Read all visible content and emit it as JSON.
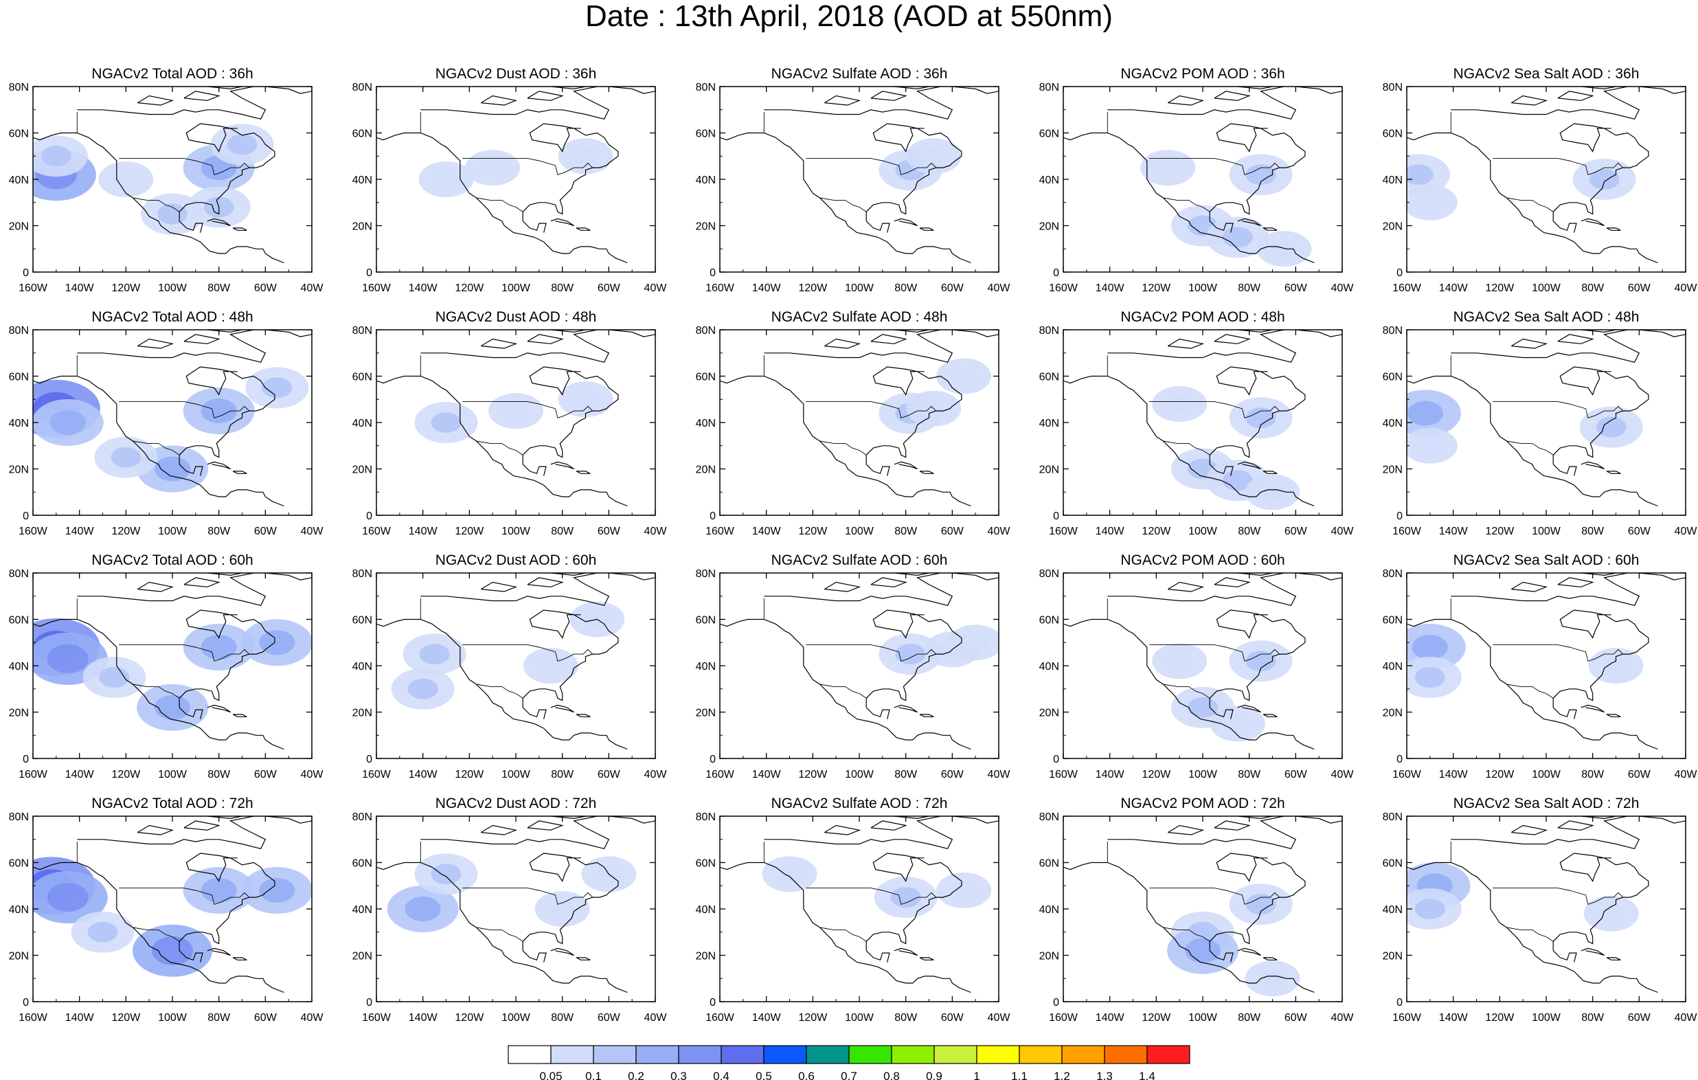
{
  "title": "Date : 13th April, 2018 (AOD at 550nm)",
  "chart_data": {
    "type": "heatmap",
    "layout": {
      "rows": 4,
      "cols": 5
    },
    "forecast_hours": [
      "36h",
      "48h",
      "60h",
      "72h"
    ],
    "species": [
      {
        "key": "total",
        "label_prefix": "NGACv2 Total AOD : "
      },
      {
        "key": "dust",
        "label_prefix": "NGACv2 Dust AOD : "
      },
      {
        "key": "sulfate",
        "label_prefix": "NGACv2 Sulfate AOD : "
      },
      {
        "key": "pom",
        "label_prefix": "NGACv2 POM AOD : "
      },
      {
        "key": "seasalt",
        "label_prefix": "NGACv2 Sea Salt AOD : "
      }
    ],
    "panel_titles": [
      [
        "NGACv2 Total AOD : 36h",
        "NGACv2 Dust AOD : 36h",
        "NGACv2 Sulfate AOD : 36h",
        "NGACv2 POM AOD : 36h",
        "NGACv2 Sea Salt AOD : 36h"
      ],
      [
        "NGACv2 Total AOD : 48h",
        "NGACv2 Dust AOD : 48h",
        "NGACv2 Sulfate AOD : 48h",
        "NGACv2 POM AOD : 48h",
        "NGACv2 Sea Salt AOD : 48h"
      ],
      [
        "NGACv2 Total AOD : 60h",
        "NGACv2 Dust AOD : 60h",
        "NGACv2 Sulfate AOD : 60h",
        "NGACv2 POM AOD : 60h",
        "NGACv2 Sea Salt AOD : 60h"
      ],
      [
        "NGACv2 Total AOD : 72h",
        "NGACv2 Dust AOD : 72h",
        "NGACv2 Sulfate AOD : 72h",
        "NGACv2 POM AOD : 72h",
        "NGACv2 Sea Salt  AOD : 72h"
      ]
    ],
    "x_axis": {
      "ticks": [
        -160,
        -140,
        -120,
        -100,
        -80,
        -60,
        -40
      ],
      "tick_labels": [
        "160W",
        "140W",
        "120W",
        "100W",
        "80W",
        "60W",
        "40W"
      ],
      "range": [
        -160,
        -40
      ]
    },
    "y_axis": {
      "ticks": [
        0,
        20,
        40,
        60,
        80
      ],
      "tick_labels": [
        "0",
        "20N",
        "40N",
        "60N",
        "80N"
      ],
      "range": [
        0,
        80
      ]
    },
    "colorbar": {
      "levels": [
        "0.05",
        "0.1",
        "0.2",
        "0.3",
        "0.4",
        "0.5",
        "0.6",
        "0.7",
        "0.8",
        "0.9",
        "1",
        "1.1",
        "1.2",
        "1.3",
        "1.4"
      ],
      "colors": [
        "#ffffff",
        "#d2ddfa",
        "#b4c6f8",
        "#96aff6",
        "#7d92f2",
        "#5f6eef",
        "#0a5aff",
        "#00968c",
        "#37e600",
        "#8cf000",
        "#c8f03c",
        "#ffff00",
        "#ffc800",
        "#ffa000",
        "#ff6e00",
        "#ff1e1e"
      ]
    },
    "features": {
      "total": [
        [
          {
            "lon": -150,
            "lat": 42,
            "level": 4
          },
          {
            "lon": -150,
            "lat": 50,
            "level": 2
          },
          {
            "lon": -80,
            "lat": 45,
            "level": 3
          },
          {
            "lon": -70,
            "lat": 55,
            "level": 2
          },
          {
            "lon": -120,
            "lat": 40,
            "level": 1
          },
          {
            "lon": -100,
            "lat": 25,
            "level": 2
          },
          {
            "lon": -80,
            "lat": 28,
            "level": 2
          }
        ],
        [
          {
            "lon": -150,
            "lat": 46,
            "level": 5
          },
          {
            "lon": -145,
            "lat": 40,
            "level": 3
          },
          {
            "lon": -80,
            "lat": 45,
            "level": 3
          },
          {
            "lon": -55,
            "lat": 55,
            "level": 2
          },
          {
            "lon": -100,
            "lat": 20,
            "level": 3
          },
          {
            "lon": -120,
            "lat": 25,
            "level": 2
          }
        ],
        [
          {
            "lon": -150,
            "lat": 48,
            "level": 5
          },
          {
            "lon": -145,
            "lat": 43,
            "level": 4
          },
          {
            "lon": -80,
            "lat": 48,
            "level": 3
          },
          {
            "lon": -55,
            "lat": 50,
            "level": 3
          },
          {
            "lon": -100,
            "lat": 22,
            "level": 3
          },
          {
            "lon": -125,
            "lat": 35,
            "level": 2
          }
        ],
        [
          {
            "lon": -152,
            "lat": 50,
            "level": 5
          },
          {
            "lon": -145,
            "lat": 45,
            "level": 4
          },
          {
            "lon": -100,
            "lat": 22,
            "level": 4
          },
          {
            "lon": -80,
            "lat": 48,
            "level": 3
          },
          {
            "lon": -55,
            "lat": 48,
            "level": 3
          },
          {
            "lon": -130,
            "lat": 30,
            "level": 2
          }
        ]
      ],
      "dust": [
        [
          {
            "lon": -130,
            "lat": 40,
            "level": 1
          },
          {
            "lon": -110,
            "lat": 45,
            "level": 1
          },
          {
            "lon": -70,
            "lat": 50,
            "level": 1
          }
        ],
        [
          {
            "lon": -130,
            "lat": 40,
            "level": 2
          },
          {
            "lon": -100,
            "lat": 45,
            "level": 1
          },
          {
            "lon": -70,
            "lat": 50,
            "level": 1
          }
        ],
        [
          {
            "lon": -135,
            "lat": 45,
            "level": 2
          },
          {
            "lon": -140,
            "lat": 30,
            "level": 2
          },
          {
            "lon": -85,
            "lat": 40,
            "level": 1
          },
          {
            "lon": -65,
            "lat": 60,
            "level": 1
          }
        ],
        [
          {
            "lon": -140,
            "lat": 40,
            "level": 3
          },
          {
            "lon": -130,
            "lat": 55,
            "level": 2
          },
          {
            "lon": -80,
            "lat": 40,
            "level": 1
          },
          {
            "lon": -60,
            "lat": 55,
            "level": 1
          }
        ]
      ],
      "sulfate": [
        [
          {
            "lon": -78,
            "lat": 44,
            "level": 2
          },
          {
            "lon": -68,
            "lat": 50,
            "level": 1
          }
        ],
        [
          {
            "lon": -78,
            "lat": 44,
            "level": 2
          },
          {
            "lon": -68,
            "lat": 46,
            "level": 1
          },
          {
            "lon": -55,
            "lat": 60,
            "level": 1
          }
        ],
        [
          {
            "lon": -78,
            "lat": 45,
            "level": 2
          },
          {
            "lon": -60,
            "lat": 47,
            "level": 1
          },
          {
            "lon": -50,
            "lat": 50,
            "level": 1
          }
        ],
        [
          {
            "lon": -80,
            "lat": 45,
            "level": 2
          },
          {
            "lon": -55,
            "lat": 48,
            "level": 1
          },
          {
            "lon": -130,
            "lat": 55,
            "level": 1
          }
        ]
      ],
      "pom": [
        [
          {
            "lon": -75,
            "lat": 42,
            "level": 2
          },
          {
            "lon": -100,
            "lat": 20,
            "level": 2
          },
          {
            "lon": -85,
            "lat": 15,
            "level": 2
          },
          {
            "lon": -65,
            "lat": 10,
            "level": 1
          },
          {
            "lon": -115,
            "lat": 45,
            "level": 1
          }
        ],
        [
          {
            "lon": -75,
            "lat": 42,
            "level": 2
          },
          {
            "lon": -100,
            "lat": 20,
            "level": 2
          },
          {
            "lon": -85,
            "lat": 15,
            "level": 2
          },
          {
            "lon": -70,
            "lat": 10,
            "level": 1
          },
          {
            "lon": -110,
            "lat": 48,
            "level": 1
          }
        ],
        [
          {
            "lon": -75,
            "lat": 42,
            "level": 2
          },
          {
            "lon": -100,
            "lat": 22,
            "level": 2
          },
          {
            "lon": -85,
            "lat": 15,
            "level": 1
          },
          {
            "lon": -110,
            "lat": 42,
            "level": 1
          }
        ],
        [
          {
            "lon": -100,
            "lat": 30,
            "level": 2
          },
          {
            "lon": -100,
            "lat": 22,
            "level": 3
          },
          {
            "lon": -75,
            "lat": 42,
            "level": 2
          },
          {
            "lon": -70,
            "lat": 10,
            "level": 1
          }
        ]
      ],
      "seasalt": [
        [
          {
            "lon": -155,
            "lat": 42,
            "level": 2
          },
          {
            "lon": -150,
            "lat": 30,
            "level": 1
          },
          {
            "lon": -75,
            "lat": 40,
            "level": 2
          }
        ],
        [
          {
            "lon": -152,
            "lat": 44,
            "level": 3
          },
          {
            "lon": -150,
            "lat": 30,
            "level": 1
          },
          {
            "lon": -72,
            "lat": 38,
            "level": 2
          }
        ],
        [
          {
            "lon": -150,
            "lat": 48,
            "level": 3
          },
          {
            "lon": -150,
            "lat": 35,
            "level": 2
          },
          {
            "lon": -70,
            "lat": 40,
            "level": 1
          }
        ],
        [
          {
            "lon": -148,
            "lat": 50,
            "level": 3
          },
          {
            "lon": -150,
            "lat": 40,
            "level": 2
          },
          {
            "lon": -72,
            "lat": 38,
            "level": 1
          }
        ]
      ]
    }
  }
}
